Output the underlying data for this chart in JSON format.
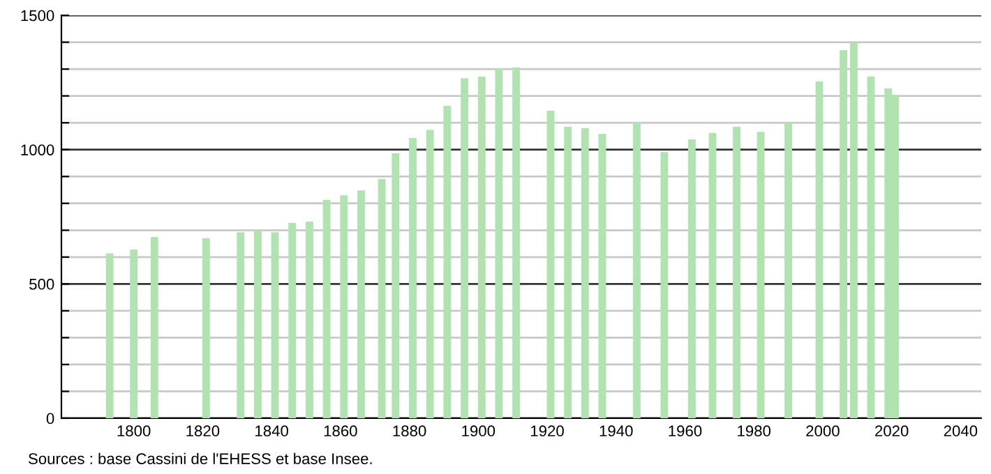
{
  "chart_data": {
    "type": "bar",
    "color": "#b0e3b0",
    "x": [
      1793,
      1800,
      1806,
      1821,
      1831,
      1836,
      1841,
      1846,
      1851,
      1856,
      1861,
      1866,
      1872,
      1876,
      1881,
      1886,
      1891,
      1896,
      1901,
      1906,
      1911,
      1921,
      1926,
      1931,
      1936,
      1946,
      1954,
      1962,
      1968,
      1975,
      1982,
      1990,
      1999,
      2006,
      2009,
      2014,
      2019,
      2021
    ],
    "values": [
      614,
      628,
      675,
      670,
      692,
      701,
      692,
      727,
      732,
      813,
      830,
      848,
      891,
      986,
      1043,
      1074,
      1163,
      1266,
      1272,
      1301,
      1306,
      1145,
      1085,
      1080,
      1059,
      1102,
      991,
      1038,
      1062,
      1085,
      1066,
      1099,
      1254,
      1370,
      1398,
      1272,
      1228,
      1203
    ],
    "xlim": [
      1779,
      2046
    ],
    "xticks": [
      1800,
      1820,
      1840,
      1860,
      1880,
      1900,
      1920,
      1940,
      1960,
      1980,
      2000,
      2020,
      2040
    ],
    "ylim": [
      0,
      1500
    ],
    "yticks": [
      0,
      {
        "value": 100,
        "label": null
      },
      {
        "value": 200,
        "label": null
      },
      {
        "value": 300,
        "label": null
      },
      {
        "value": 400,
        "label": null
      },
      500,
      {
        "value": 600,
        "label": null
      },
      {
        "value": 700,
        "label": null
      },
      {
        "value": 800,
        "label": null
      },
      {
        "value": 900,
        "label": null
      },
      1000,
      {
        "value": 1100,
        "label": null
      },
      {
        "value": 1200,
        "label": null
      },
      {
        "value": 1300,
        "label": null
      },
      {
        "value": 1400,
        "label": null
      },
      1500
    ],
    "grid": "y",
    "annotations": [
      "Sources : base Cassini de l'EHESS et base Insee."
    ]
  }
}
